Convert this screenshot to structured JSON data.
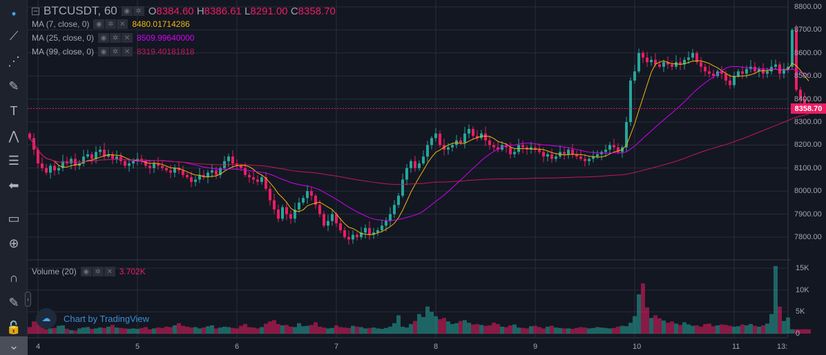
{
  "header": {
    "symbol": "BTCUSDT, 60",
    "o_label": "O",
    "o": "8384.60",
    "h_label": "H",
    "h": "8386.61",
    "l_label": "L",
    "l": "8291.00",
    "c_label": "C",
    "c": "8358.70"
  },
  "indicators": [
    {
      "label": "MA (7, close, 0)",
      "value": "8480.01714286",
      "color": "#f0b90b"
    },
    {
      "label": "MA (25, close, 0)",
      "value": "8509.99640000",
      "color": "#d500f9"
    },
    {
      "label": "MA (99, close, 0)",
      "value": "8319.40181818",
      "color": "#c2185b"
    }
  ],
  "volume": {
    "label": "Volume (20)",
    "value": "3.702K"
  },
  "watermark": "Chart by TradingView",
  "price_axis": [
    "8800.00",
    "8700.00",
    "8600.00",
    "8500.00",
    "8400.00",
    "8300.00",
    "8200.00",
    "8100.00",
    "8000.00",
    "7900.00",
    "7800.00"
  ],
  "last_price": "8358.70",
  "volume_axis": [
    "15K",
    "10K",
    "5K",
    "0"
  ],
  "time_axis": [
    "4",
    "5",
    "6",
    "7",
    "8",
    "9",
    "10",
    "11",
    "13:"
  ],
  "colors": {
    "up": "#26a69a",
    "down": "#e91e63",
    "bg": "#131722",
    "grid": "#2a2e39"
  },
  "toolbar_icons": [
    "cursor-dot-icon",
    "trend-line-icon",
    "pitchfork-icon",
    "brush-icon",
    "text-icon",
    "pattern-icon",
    "fib-icon",
    "back-arrow-icon",
    "ruler-icon",
    "zoom-in-icon",
    "magnet-icon",
    "lock-drawing-icon",
    "lock-icon",
    "chevron-down-icon"
  ],
  "chart_data": {
    "type": "candlestick",
    "interval": "60",
    "closes": [
      8230,
      8180,
      8120,
      8100,
      8080,
      8110,
      8090,
      8100,
      8130,
      8120,
      8140,
      8110,
      8120,
      8150,
      8160,
      8140,
      8170,
      8180,
      8150,
      8160,
      8140,
      8150,
      8130,
      8110,
      8120,
      8130,
      8140,
      8130,
      8110,
      8100,
      8120,
      8110,
      8100,
      8090,
      8080,
      8100,
      8090,
      8070,
      8060,
      8040,
      8050,
      8070,
      8060,
      8080,
      8090,
      8070,
      8100,
      8130,
      8150,
      8120,
      8110,
      8100,
      8070,
      8060,
      8050,
      8040,
      8060,
      8010,
      7960,
      7920,
      7880,
      7930,
      7900,
      7880,
      7920,
      7950,
      7970,
      8000,
      7980,
      7940,
      7900,
      7850,
      7870,
      7900,
      7860,
      7830,
      7800,
      7790,
      7810,
      7800,
      7820,
      7840,
      7810,
      7820,
      7830,
      7850,
      7870,
      7900,
      7940,
      7980,
      8050,
      8100,
      8130,
      8100,
      8120,
      8150,
      8200,
      8230,
      8250,
      8200,
      8180,
      8190,
      8200,
      8220,
      8210,
      8250,
      8270,
      8240,
      8230,
      8250,
      8220,
      8200,
      8190,
      8180,
      8200,
      8190,
      8160,
      8170,
      8200,
      8190,
      8180,
      8190,
      8180,
      8170,
      8150,
      8160,
      8140,
      8150,
      8170,
      8160,
      8180,
      8160,
      8150,
      8140,
      8130,
      8140,
      8150,
      8160,
      8170,
      8180,
      8200,
      8190,
      8170,
      8190,
      8300,
      8480,
      8520,
      8600,
      8580,
      8560,
      8570,
      8550,
      8540,
      8560,
      8550,
      8540,
      8560,
      8550,
      8570,
      8580,
      8600,
      8560,
      8540,
      8520,
      8510,
      8500,
      8520,
      8510,
      8480,
      8460,
      8500,
      8520,
      8510,
      8530,
      8540,
      8520,
      8530,
      8510,
      8520,
      8540,
      8550,
      8510,
      8530,
      8540,
      8700,
      8440,
      8400,
      8380,
      8358.7
    ],
    "volumes_k": [
      1.5,
      2.8,
      3.5,
      2.7,
      1,
      1.2,
      1.3,
      1.8,
      1.9,
      1.1,
      0.8,
      0.7,
      1.2,
      1.4,
      1.5,
      1.1,
      1.2,
      1.4,
      1.3,
      1.6,
      2,
      1.4,
      1.3,
      1.2,
      1.1,
      1.2,
      1.1,
      1.3,
      1.5,
      1,
      1.2,
      1.4,
      1.3,
      1.6,
      1.5,
      1.9,
      2.4,
      1.8,
      1.6,
      1.4,
      1.5,
      1.2,
      1.4,
      1.7,
      1.9,
      1.2,
      1.4,
      1.6,
      1.5,
      1.3,
      1.2,
      1.8,
      2.2,
      1.5,
      1.4,
      1.2,
      1.5,
      2.3,
      2.8,
      3.1,
      2.2,
      1.9,
      2,
      1.6,
      1.5,
      2.4,
      1.7,
      1.8,
      2,
      2.6,
      1.6,
      1.4,
      1.2,
      1.3,
      1.9,
      1.5,
      1.4,
      1.3,
      1.8,
      1.6,
      1.5,
      1.2,
      1.3,
      1.4,
      1.2,
      1.1,
      1.3,
      1.6,
      2.4,
      4.2,
      1.6,
      1.4,
      2.2,
      2.9,
      4.5,
      3.8,
      6.2,
      5,
      4,
      3.3,
      3.6,
      2.8,
      2.2,
      2.4,
      2.9,
      3.1,
      2.5,
      2.1,
      2.2,
      2,
      1.8,
      1.9,
      2.5,
      2.2,
      1.6,
      1.5,
      1.9,
      2.1,
      1.4,
      1.3,
      1.2,
      1.7,
      1.8,
      1.5,
      1.2,
      1.6,
      1.8,
      1.4,
      1.3,
      1.2,
      1.2,
      1.1,
      1.3,
      1.5,
      1.4,
      1.2,
      1.3,
      1.5,
      1.4,
      1.3,
      1.2,
      1.3,
      1.6,
      1.8,
      1.7,
      2.5,
      4,
      9,
      11.5,
      6,
      3.6,
      4.2,
      3.5,
      3,
      2.5,
      2.8,
      2.3,
      2,
      2.6,
      2.1,
      1.8,
      1.9,
      1.6,
      2.2,
      2.3,
      1.7,
      1.9,
      2.1,
      2,
      1.8,
      1.6,
      1.7,
      2.1,
      1.9,
      2.2,
      1.8,
      1.6,
      1.9,
      2.3,
      4.5,
      15.5,
      6.2,
      2.9,
      3.7
    ],
    "price_range": [
      7700,
      8820
    ],
    "volume_range": [
      0,
      16
    ],
    "ma_periods": [
      7,
      25,
      99
    ]
  }
}
